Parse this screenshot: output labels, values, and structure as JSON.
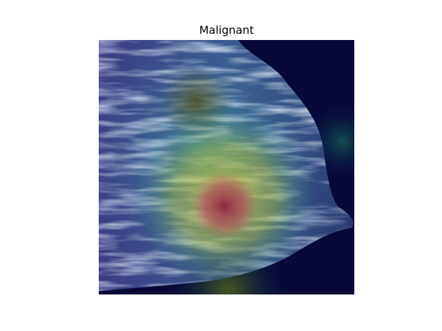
{
  "title": "Malignant"
}
